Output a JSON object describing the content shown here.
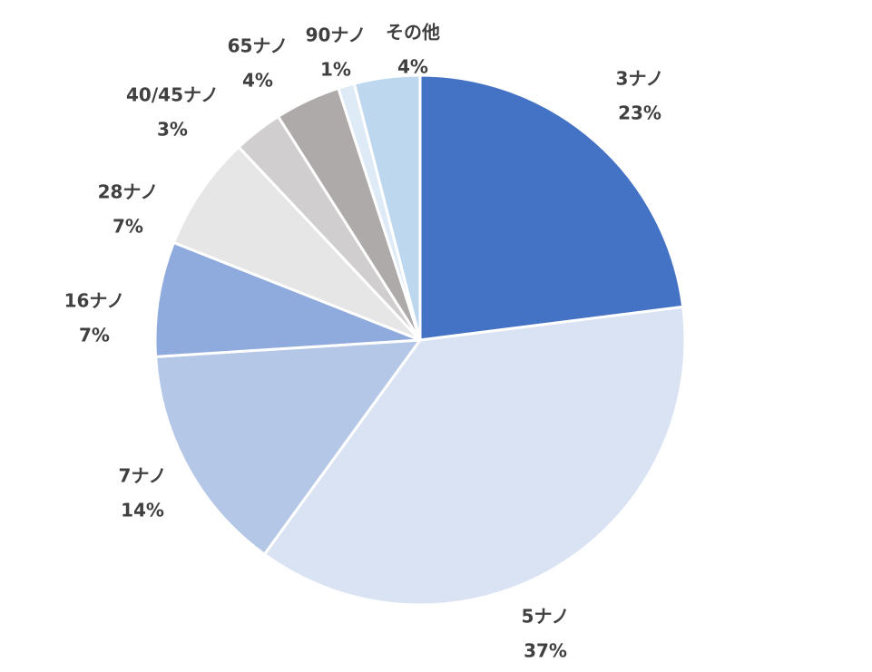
{
  "chart_data": {
    "type": "pie",
    "title": "",
    "legend": "none",
    "start_angle": "12 o'clock, clockwise",
    "slices": [
      {
        "label": "3ナノ",
        "value": 23,
        "value_label": "23%",
        "color": "#4472C4"
      },
      {
        "label": "5ナノ",
        "value": 37,
        "value_label": "37%",
        "color": "#DAE3F3"
      },
      {
        "label": "7ナノ",
        "value": 14,
        "value_label": "14%",
        "color": "#B4C7E7"
      },
      {
        "label": "16ナノ",
        "value": 7,
        "value_label": "7%",
        "color": "#8FAADC"
      },
      {
        "label": "28ナノ",
        "value": 7,
        "value_label": "7%",
        "color": "#E7E6E6"
      },
      {
        "label": "40/45ナノ",
        "value": 3,
        "value_label": "3%",
        "color": "#D0CECE"
      },
      {
        "label": "65ナノ",
        "value": 4,
        "value_label": "4%",
        "color": "#AEAAAA"
      },
      {
        "label": "90ナノ",
        "value": 1,
        "value_label": "1%",
        "color": "#DEEBF7"
      },
      {
        "label": "その他",
        "value": 4,
        "value_label": "4%",
        "color": "#BDD7EE"
      }
    ]
  }
}
